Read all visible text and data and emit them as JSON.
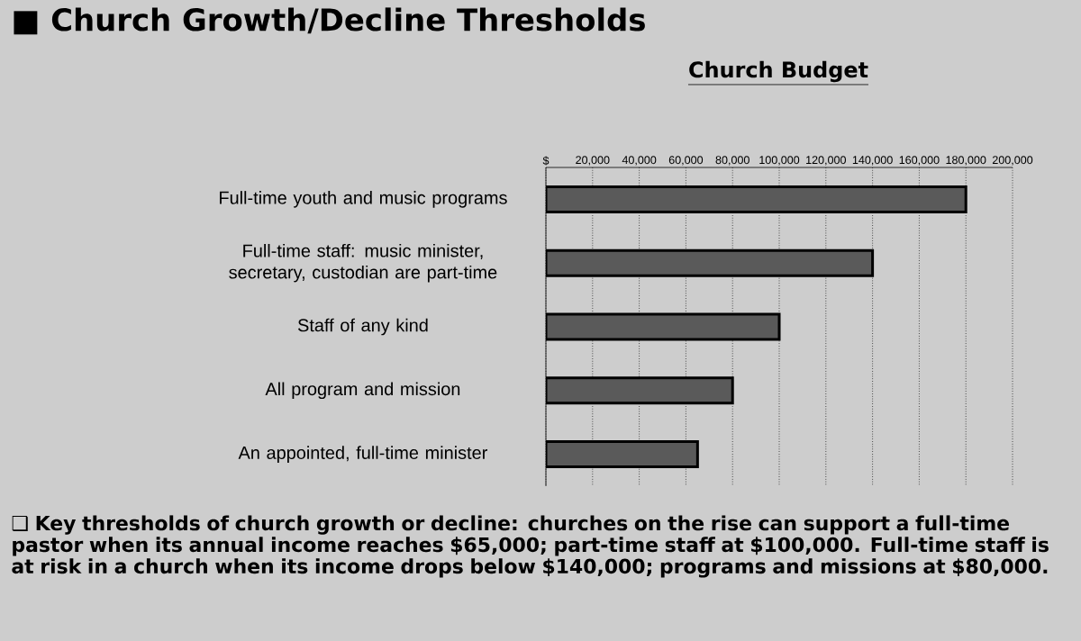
{
  "chart_data": {
    "type": "bar",
    "orientation": "horizontal",
    "title": "■ Church Growth/Decline Thresholds",
    "subtitle": "Church Budget",
    "categories": [
      "Full-time youth and music programs",
      "Full-time staff: music minister, secretary, custodian are part-time",
      "Staff of any kind",
      "All program and mission",
      "An appointed, full-time minister"
    ],
    "values": [
      180000,
      140000,
      100000,
      80000,
      65000
    ],
    "color": "#5a5a5a",
    "xlim": [
      0,
      200000
    ],
    "xticks": [
      {
        "value": 0,
        "label": "$"
      },
      {
        "value": 20000,
        "label": "20,000"
      },
      {
        "value": 40000,
        "label": "40,000"
      },
      {
        "value": 60000,
        "label": "60,000"
      },
      {
        "value": 80000,
        "label": "80,000"
      },
      {
        "value": 100000,
        "label": "100,000"
      },
      {
        "value": 120000,
        "label": "120,000"
      },
      {
        "value": 140000,
        "label": "140,000"
      },
      {
        "value": 160000,
        "label": "160,000"
      },
      {
        "value": 180000,
        "label": "180,000"
      },
      {
        "value": 200000,
        "label": "200,000"
      }
    ],
    "grid": "x",
    "annotations": [
      "❑ Key thresholds of church growth or decline: churches on the rise can support a full-time pastor when its annual income reaches $65,000; part-time staff at $100,000. Full-time staff is at risk in a church when its income drops below $140,000; programs and missions at $80,000."
    ]
  }
}
